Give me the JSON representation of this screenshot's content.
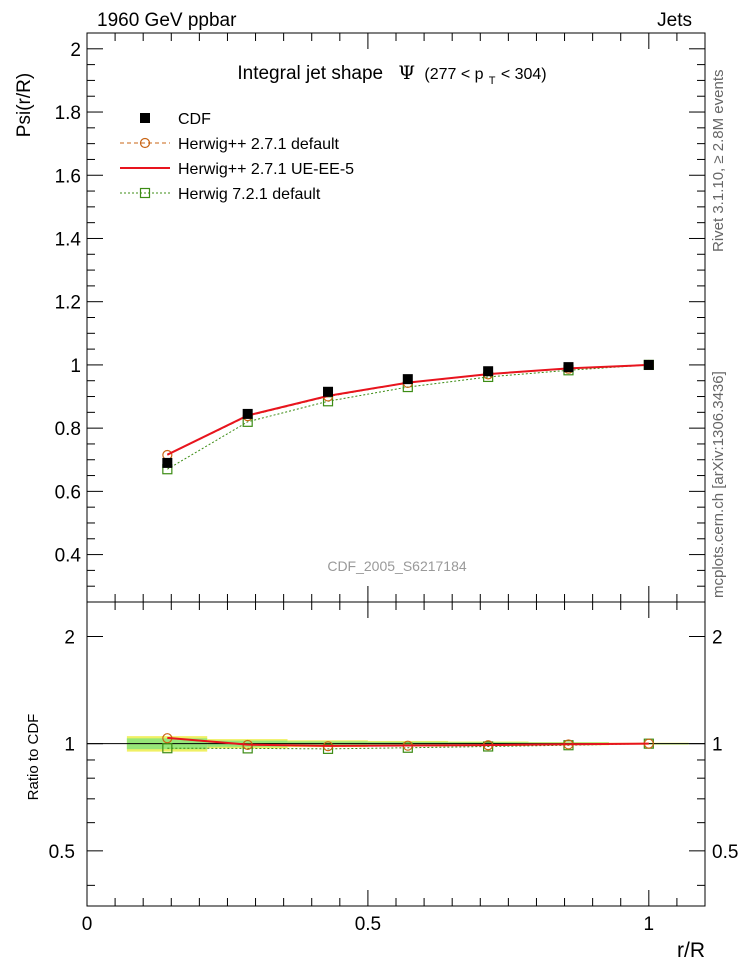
{
  "header": {
    "left": "1960 GeV ppbar",
    "right": "Jets"
  },
  "side_labels": {
    "rivet": "Rivet 3.1.10, ≥ 2.8M events",
    "mcplots": "mcplots.cern.ch [arXiv:1306.3436]"
  },
  "watermark": "CDF_2005_S6217184",
  "chart_data": [
    {
      "type": "scatter",
      "panel": "main",
      "title_prefix": "Integral jet shape",
      "title_symbol": "Ψ",
      "title_range": "(277 < p",
      "title_sub": "T",
      "title_range_end": " < 304)",
      "ylabel": "Psi(r/R)",
      "xlabel": "r/R",
      "xlim": [
        0,
        1.1
      ],
      "ylim": [
        0.25,
        2.05
      ],
      "yticks": [
        0.4,
        0.6,
        0.8,
        1.0,
        1.2,
        1.4,
        1.6,
        1.8,
        2.0
      ],
      "ytick_labels": [
        "0.4",
        "0.6",
        "0.8",
        "1",
        "1.2",
        "1.4",
        "1.6",
        "1.8",
        "2"
      ],
      "legend_position": "top-left",
      "grid": false,
      "x": [
        0.143,
        0.286,
        0.429,
        0.571,
        0.714,
        0.857,
        1.0
      ],
      "series": [
        {
          "name": "CDF",
          "style": "data",
          "color": "#000000",
          "values": [
            0.69,
            0.845,
            0.915,
            0.955,
            0.98,
            0.993,
            1.0
          ]
        },
        {
          "name": "Herwig++ 2.7.1 default",
          "style": "circle-dashed",
          "color": "#c86414",
          "values": [
            0.715,
            0.838,
            0.9,
            0.943,
            0.97,
            0.988,
            1.0
          ]
        },
        {
          "name": "Herwig++ 2.7.1 UE-EE-5",
          "style": "solid",
          "color": "#e8141e",
          "values": [
            0.716,
            0.84,
            0.902,
            0.944,
            0.971,
            0.989,
            1.0
          ]
        },
        {
          "name": "Herwig 7.2.1 default",
          "style": "square-dotted",
          "color": "#3c8c14",
          "values": [
            0.67,
            0.82,
            0.885,
            0.93,
            0.962,
            0.983,
            1.0
          ]
        }
      ]
    },
    {
      "type": "scatter",
      "panel": "ratio",
      "ylabel": "Ratio to CDF",
      "xlabel": "r/R",
      "xlim": [
        0,
        1.1
      ],
      "ylim": [
        0.35,
        2.5
      ],
      "ylog": true,
      "yticks": [
        0.5,
        1,
        2
      ],
      "ytick_labels": [
        "0.5",
        "1",
        "2"
      ],
      "xticks": [
        0,
        0.5,
        1
      ],
      "xtick_labels": [
        "0",
        "0.5",
        "1"
      ],
      "x": [
        0.143,
        0.286,
        0.429,
        0.571,
        0.714,
        0.857,
        1.0
      ],
      "x_edges": [
        0.071,
        0.214,
        0.357,
        0.5,
        0.643,
        0.786,
        0.929,
        1.071
      ],
      "band_inner": [
        0.035,
        0.02,
        0.015,
        0.012,
        0.01,
        0.008,
        0.004
      ],
      "band_outer": [
        0.05,
        0.03,
        0.022,
        0.018,
        0.014,
        0.01,
        0.006
      ],
      "series": [
        {
          "name": "Herwig++ 2.7.1 default",
          "color": "#c86414",
          "values": [
            1.036,
            0.992,
            0.984,
            0.987,
            0.99,
            0.995,
            1.0
          ]
        },
        {
          "name": "Herwig++ 2.7.1 UE-EE-5",
          "color": "#e8141e",
          "values": [
            1.038,
            0.994,
            0.986,
            0.988,
            0.991,
            0.996,
            1.0
          ]
        },
        {
          "name": "Herwig 7.2.1 default",
          "color": "#3c8c14",
          "values": [
            0.971,
            0.97,
            0.967,
            0.974,
            0.982,
            0.99,
            1.0
          ]
        }
      ]
    }
  ]
}
